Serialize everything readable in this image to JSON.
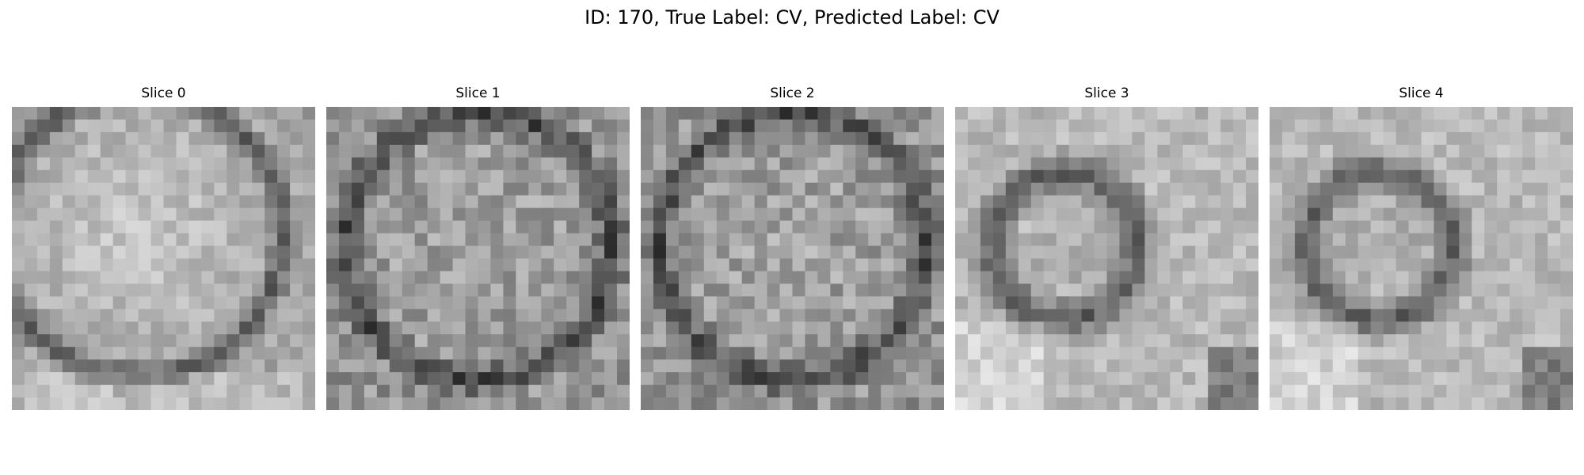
{
  "figure": {
    "suptitle": "ID: 170, True Label: CV, Predicted Label: CV"
  },
  "slices": [
    {
      "title": "Slice 0",
      "pattern": "large-disk-bright-center-dark-edges",
      "seed": 11
    },
    {
      "title": "Slice 1",
      "pattern": "noisy-disk-bright-center-dark-border",
      "seed": 23
    },
    {
      "title": "Slice 2",
      "pattern": "noisy-disk-bright-center-dark-ring",
      "seed": 37
    },
    {
      "title": "Slice 3",
      "pattern": "small-bright-core-dark-ring-bright-background",
      "seed": 41
    },
    {
      "title": "Slice 4",
      "pattern": "small-bright-core-dark-ring-bright-background",
      "seed": 43
    }
  ],
  "colors": {
    "colormap": "gray",
    "background": "#ffffff"
  }
}
